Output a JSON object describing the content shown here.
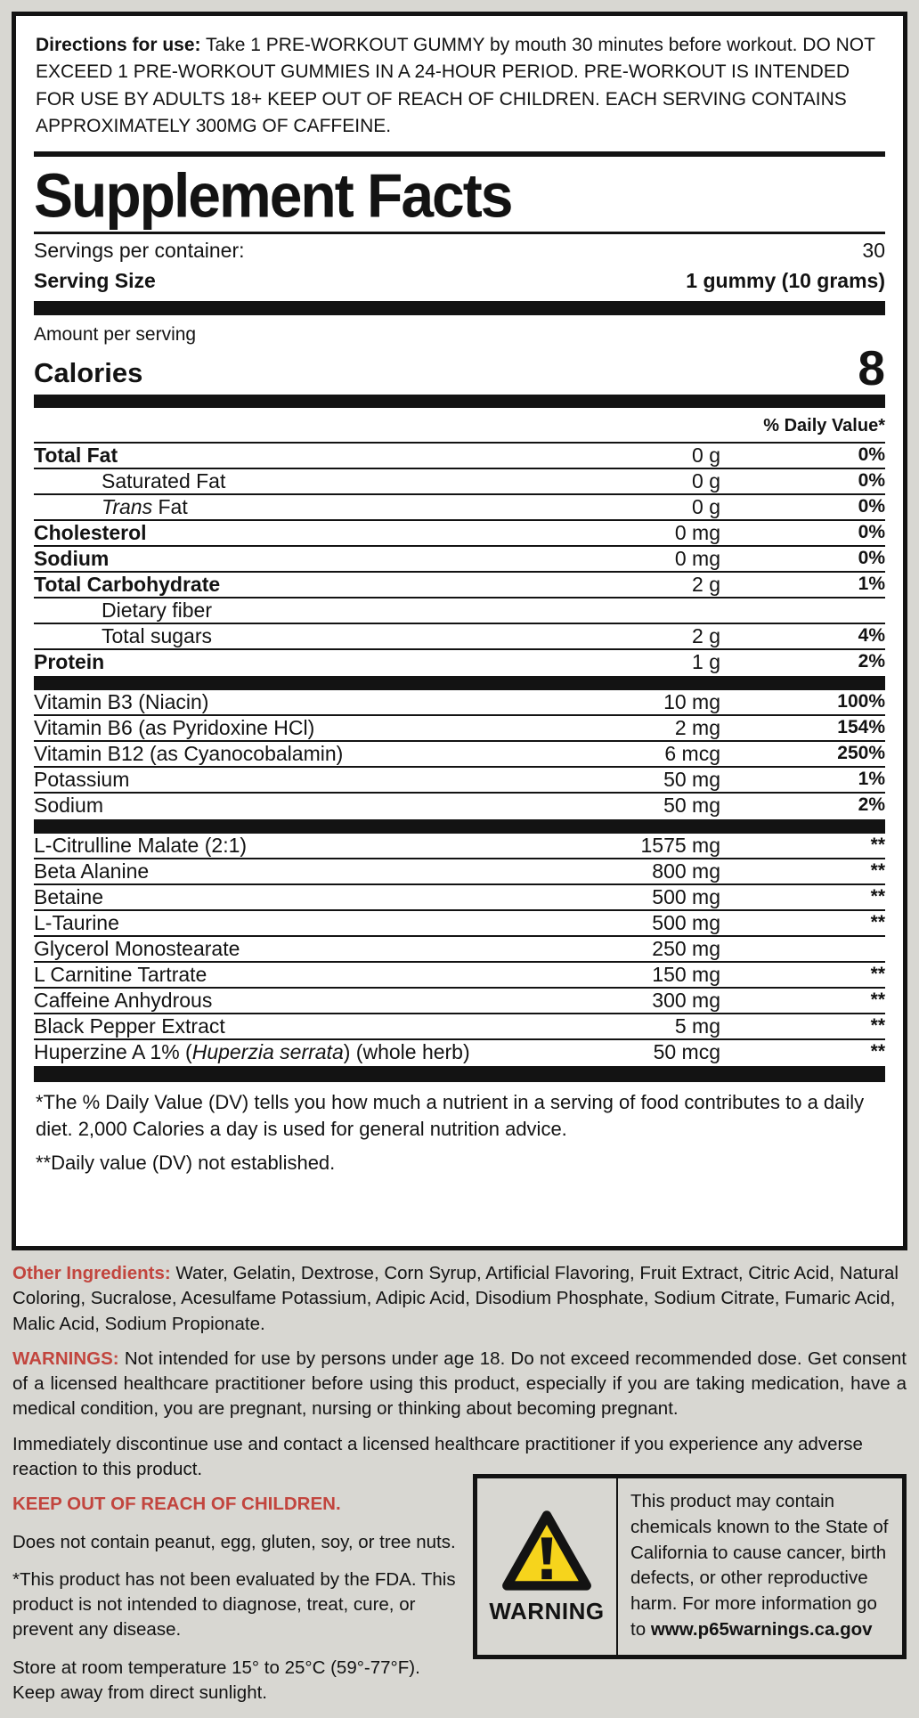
{
  "page": {
    "background_color": "#d8d7d2",
    "accent_red": "#c2453e",
    "warning_yellow": "#f6d41c"
  },
  "directions": {
    "label": "Directions for use:",
    "text": "Take 1 PRE-WORKOUT GUMMY by mouth 30 minutes before workout. DO NOT EXCEED 1 PRE-WORKOUT GUMMIES IN A 24-HOUR PERIOD. PRE-WORKOUT IS INTENDED FOR USE BY ADULTS 18+ KEEP OUT OF REACH OF CHILDREN. EACH SERVING CONTAINS APPROXIMATELY 300MG OF CAFFEINE."
  },
  "facts": {
    "title": "Supplement Facts",
    "servings_per_container_label": "Servings per container:",
    "servings_per_container_value": "30",
    "serving_size_label": "Serving Size",
    "serving_size_value": "1 gummy (10 grams)",
    "amount_per_serving_label": "Amount per serving",
    "calories_label": "Calories",
    "calories_value": "8",
    "daily_value_header": "% Daily Value*",
    "macro_rows": [
      {
        "name": "Total Fat",
        "amount": "0 g",
        "dv": "0%",
        "bold": true
      },
      {
        "name": "Saturated Fat",
        "amount": "0 g",
        "dv": "0%",
        "indent": true
      },
      {
        "parts": [
          {
            "t": "Trans",
            "i": true
          },
          {
            "t": " Fat"
          }
        ],
        "amount": "0 g",
        "dv": "0%",
        "indent": true
      },
      {
        "name": "Cholesterol",
        "amount": "0 mg",
        "dv": "0%",
        "bold": true
      },
      {
        "name": "Sodium",
        "amount": "0 mg",
        "dv": "0%",
        "bold": true
      },
      {
        "name": "Total Carbohydrate",
        "amount": "2 g",
        "dv": "1%",
        "bold": true
      },
      {
        "name": "Dietary fiber",
        "amount": "",
        "dv": "",
        "indent": true
      },
      {
        "name": "Total sugars",
        "amount": "2 g",
        "dv": "4%",
        "indent": true
      },
      {
        "name": "Protein",
        "amount": "1 g",
        "dv": "2%",
        "bold": true
      }
    ],
    "vitamin_rows": [
      {
        "name": "Vitamin B3 (Niacin)",
        "amount": "10 mg",
        "dv": "100%"
      },
      {
        "name": "Vitamin B6 (as Pyridoxine HCl)",
        "amount": "2 mg",
        "dv": "154%"
      },
      {
        "name": "Vitamin B12 (as Cyanocobalamin)",
        "amount": "6 mcg",
        "dv": "250%"
      },
      {
        "name": "Potassium",
        "amount": "50 mg",
        "dv": "1%"
      },
      {
        "name": "Sodium",
        "amount": "50 mg",
        "dv": "2%"
      }
    ],
    "ingredient_rows": [
      {
        "name": "L-Citrulline Malate (2:1)",
        "amount": "1575 mg",
        "dv": "**"
      },
      {
        "name": "Beta Alanine",
        "amount": "800 mg",
        "dv": "**"
      },
      {
        "name": "Betaine",
        "amount": "500 mg",
        "dv": "**"
      },
      {
        "name": "L-Taurine",
        "amount": "500 mg",
        "dv": "**"
      },
      {
        "name": "Glycerol Monostearate",
        "amount": "250 mg",
        "dv": ""
      },
      {
        "name": "L Carnitine Tartrate",
        "amount": "150 mg",
        "dv": "**"
      },
      {
        "name": "Caffeine Anhydrous",
        "amount": "300 mg",
        "dv": "**"
      },
      {
        "name": "Black Pepper Extract",
        "amount": "5 mg",
        "dv": "**"
      },
      {
        "parts": [
          {
            "t": "Huperzine A 1% ("
          },
          {
            "t": "Huperzia serrata",
            "i": true
          },
          {
            "t": ") (whole herb)"
          }
        ],
        "amount": "50 mcg",
        "dv": "**"
      }
    ],
    "footnote_dv": "*The % Daily Value (DV) tells you how much a nutrient in a serving of food contributes to a daily diet. 2,000 Calories a day is used for general nutrition advice.",
    "footnote_not_established": "**Daily value (DV) not established."
  },
  "other_ingredients": {
    "label": "Other Ingredients:",
    "text": "Water, Gelatin, Dextrose, Corn Syrup, Artificial Flavoring, Fruit Extract, Citric Acid, Natural Coloring, Sucralose, Acesulfame Potassium, Adipic Acid, Disodium Phosphate, Sodium Citrate, Fumaric Acid, Malic Acid, Sodium Propionate."
  },
  "warnings": {
    "label": "WARNINGS:",
    "text": "Not intended for use by persons under age 18. Do not exceed recommended dose. Get consent of a licensed healthcare practitioner before using this product, especially if you are taking medication, have a medical condition, you are pregnant, nursing or thinking about becoming pregnant.",
    "discontinue": "Immediately discontinue use and contact a licensed healthcare practitioner if you experience any adverse reaction to this product.",
    "keep_out": "KEEP OUT OF REACH OF CHILDREN.",
    "allergens": "Does not contain peanut, egg, gluten, soy, or tree nuts.",
    "fda": "*This product has not been evaluated by the FDA. This product is not intended to diagnose, treat, cure, or prevent any disease.",
    "storage": "Store at room temperature 15° to 25°C (59°-77°F). Keep away from direct sunlight."
  },
  "prop65": {
    "warning_label": "WARNING",
    "text": "This product may contain chemicals known to the State of California to cause cancer, birth defects, or other reproductive harm. For more information go to",
    "url": "www.p65warnings.ca.gov"
  }
}
